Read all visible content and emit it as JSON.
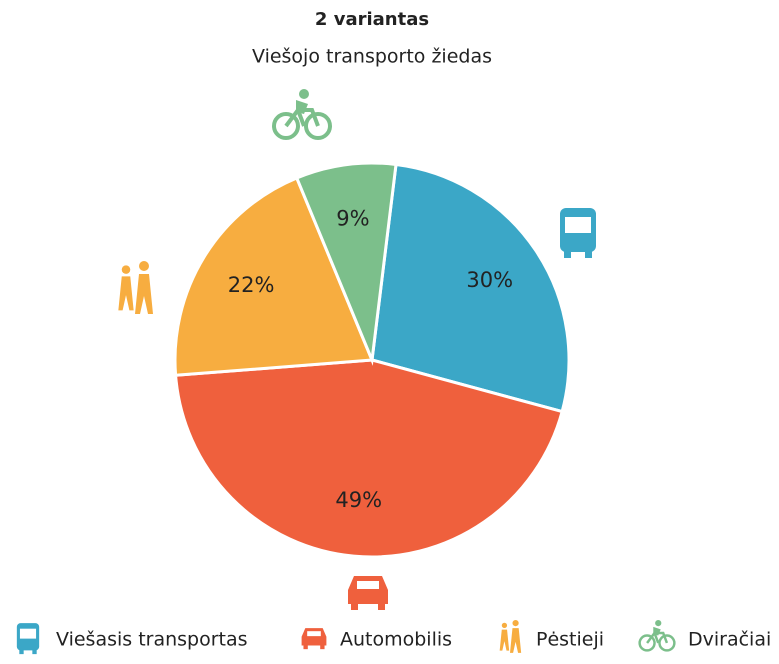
{
  "chart_data": {
    "type": "pie",
    "title": "2 variantas",
    "subtitle": "Viešojo transporto žiedas",
    "categories": [
      "Viešasis transportas",
      "Automobilis",
      "Pėstieji",
      "Dviračiai"
    ],
    "values": [
      30,
      49,
      22,
      9
    ],
    "colors": [
      "#3ba7c7",
      "#ef603d",
      "#f7ad40",
      "#7cbf8b"
    ]
  }
}
